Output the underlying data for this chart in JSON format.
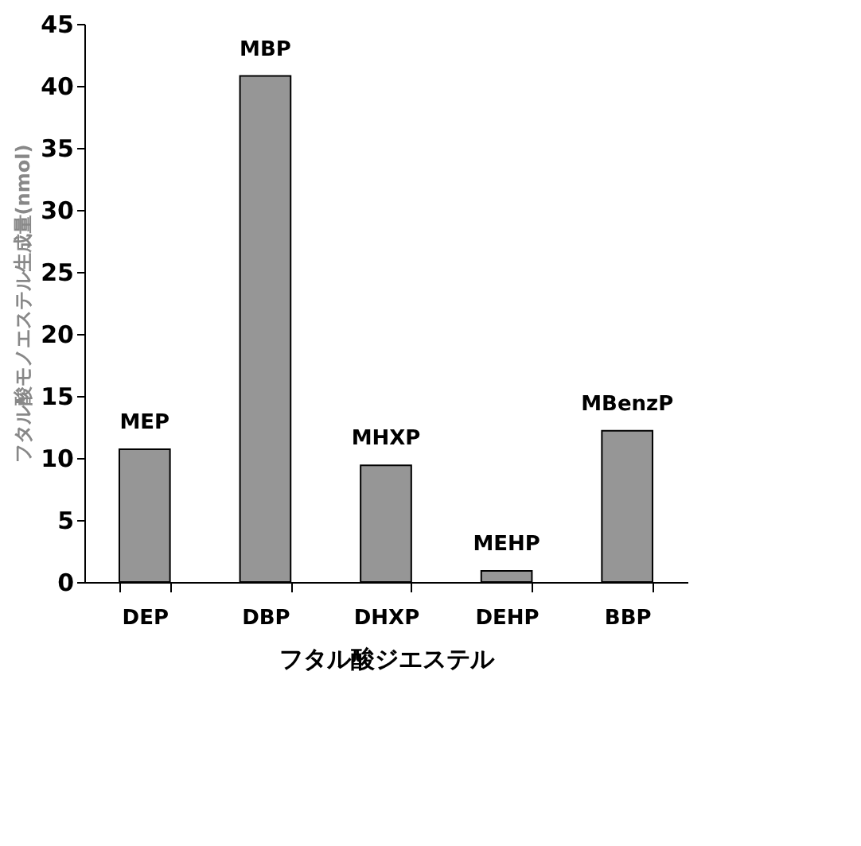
{
  "chart_data": {
    "type": "bar",
    "xlabel": "フタル酸ジエステル",
    "ylabel": "フタル酸モノエステル生成量(nmol)",
    "categories": [
      "DEP",
      "DBP",
      "DHXP",
      "DEHP",
      "BBP"
    ],
    "values": [
      10.7,
      40.8,
      9.4,
      0.9,
      12.2
    ],
    "color": "#969696",
    "ylim": [
      0,
      45
    ],
    "yticks": [
      0,
      5,
      10,
      15,
      20,
      25,
      30,
      35,
      40,
      45
    ],
    "grid": false,
    "annotations": [
      {
        "text": "MEP",
        "x": "DEP",
        "y": 10.7
      },
      {
        "text": "MBP",
        "x": "DBP",
        "y": 40.8
      },
      {
        "text": "MHXP",
        "x": "DHXP",
        "y": 9.4
      },
      {
        "text": "MEHP",
        "x": "DEHP",
        "y": 0.9
      },
      {
        "text": "MBenzP",
        "x": "BBP",
        "y": 12.2
      }
    ]
  }
}
